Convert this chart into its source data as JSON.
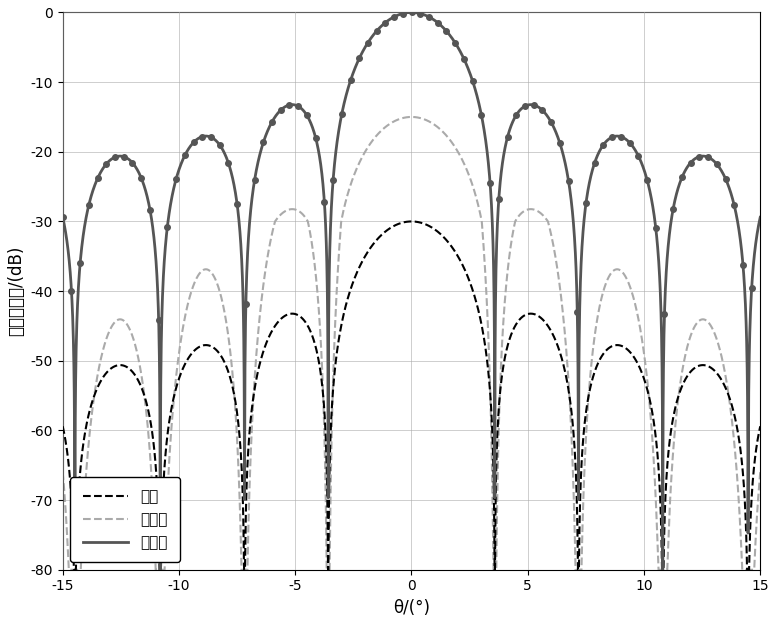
{
  "xlabel": "θ/(°)",
  "ylabel": "方向图增益/(dB)",
  "xlim": [
    -15,
    15
  ],
  "ylim": [
    -80,
    0
  ],
  "xticks": [
    -15,
    -10,
    -5,
    0,
    5,
    10,
    15
  ],
  "yticks": [
    0,
    -10,
    -20,
    -30,
    -40,
    -50,
    -60,
    -70,
    -80
  ],
  "legend_labels": [
    "静态",
    "改进后",
    "改进前"
  ],
  "color_static": "#000000",
  "color_after": "#aaaaaa",
  "color_before": "#555555",
  "background_color": "#ffffff",
  "grid_color": "#aaaaaa",
  "N": 32,
  "d": 0.5,
  "num_points": 4000
}
